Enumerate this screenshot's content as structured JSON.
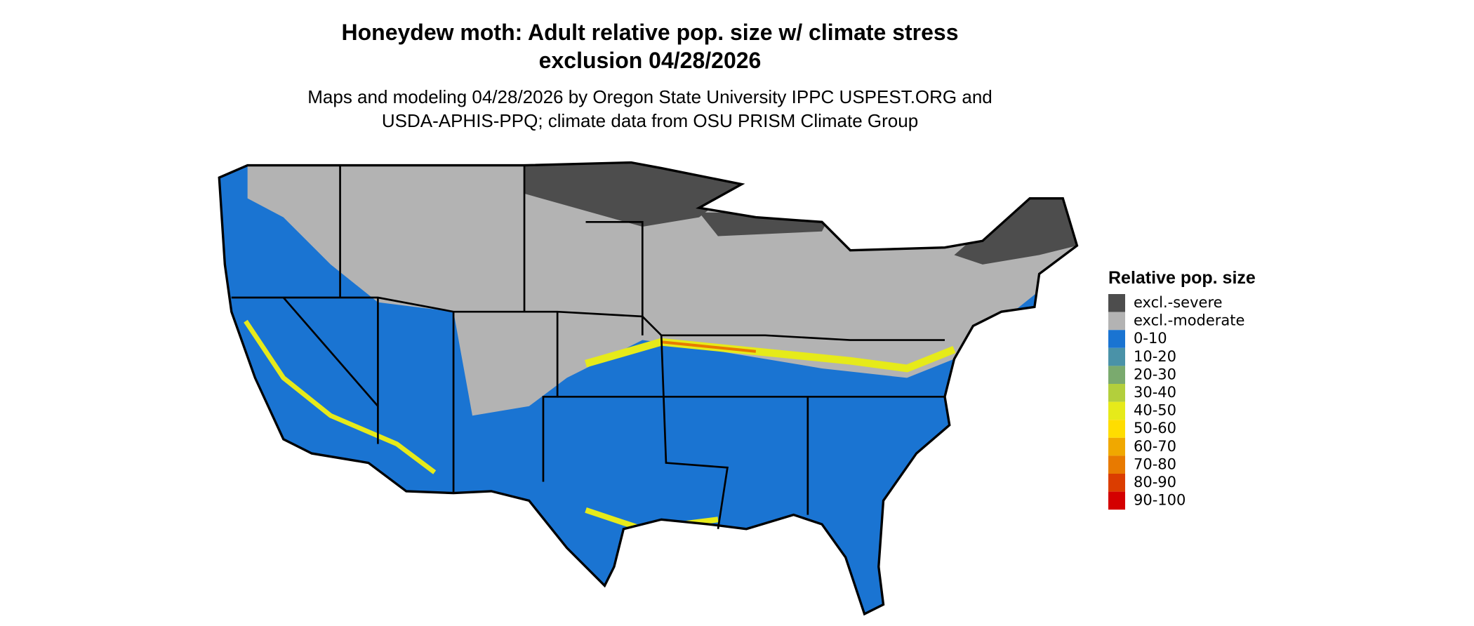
{
  "title": [
    "Honeydew moth: Adult relative pop. size w/ climate stress",
    "exclusion 04/28/2026"
  ],
  "subtitle": [
    "Maps and modeling 04/28/2026 by Oregon State University IPPC USPEST.ORG and",
    "USDA-APHIS-PPQ; climate data from OSU PRISM Climate Group"
  ],
  "legend": {
    "title": "Relative pop. size",
    "items": [
      {
        "label": "excl.-severe",
        "color": "#4d4d4d"
      },
      {
        "label": "excl.-moderate",
        "color": "#b3b3b3"
      },
      {
        "label": "0-10",
        "color": "#1a74d2"
      },
      {
        "label": "10-20",
        "color": "#4a92a8"
      },
      {
        "label": "20-30",
        "color": "#7aaa6e"
      },
      {
        "label": "30-40",
        "color": "#b3cf3c"
      },
      {
        "label": "40-50",
        "color": "#e6ea1a"
      },
      {
        "label": "50-60",
        "color": "#ffdd00"
      },
      {
        "label": "60-70",
        "color": "#f0a800"
      },
      {
        "label": "70-80",
        "color": "#e87a00"
      },
      {
        "label": "80-90",
        "color": "#db3d00"
      },
      {
        "label": "90-100",
        "color": "#d40000"
      }
    ]
  }
}
